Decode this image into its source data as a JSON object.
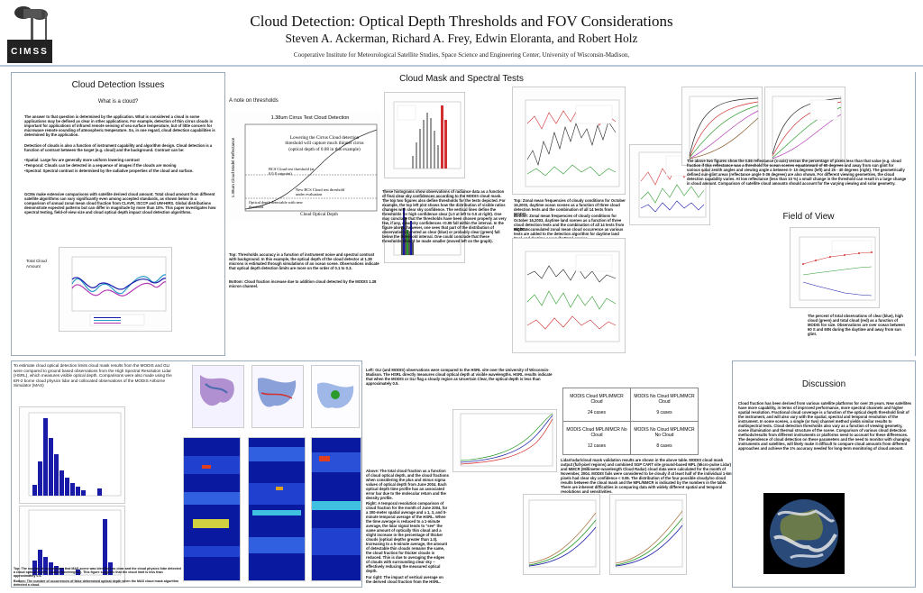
{
  "header": {
    "title": "Cloud Detection: Optical Depth Thresholds and FOV Considerations",
    "authors": "Steven A. Ackerman, Richard A. Frey, Edwin Eloranta, and Robert Holz",
    "affiliation": "Cooperative Institute for Meteorological Satellite Studies, Space Science and Engineering Center, University of Wisconsin-Madison,",
    "logo_text": "CIMSS"
  },
  "issues": {
    "title": "Cloud Detection Issues",
    "subtitle": "What is a cloud?",
    "p1": "The answer to that question is determined by the application. What is considered a cloud in some applications may be defined as clear in other applications. For example, detection of thin cirrus clouds is important for applications of infrared remote sensing of sea surface temperature, but of little concern for microwave remote sounding of atmospheric temperature. So, in one regard, cloud detection capabilities is determined by the application.",
    "p2": "Detection of clouds is also a function of instrument capability and algorithm design. Cloud detection is a function of contrast between the target (e.g. cloud) and the background. Contrast can be:",
    "list": [
      "•Spatial:      Large fov are generally more uniform lowering contrast",
      "•Temporal:   Clouds can be detected in a sequence of images if the clouds are moving",
      "•Spectral:     Spectral contrast is determined by the radiative properties of the cloud and surface."
    ],
    "p3": "GCMs make extensive comparisons with satellite derived cloud amount. Total cloud amount from different satellite algorithms can vary significantly even among accepted standards, as shown below in a comparison of annual zonal mean cloud fraction from CLAVR, ISCCP and UW-HIRS. Global distributions demonstrate expected patterns but can differ in magnitude by more than 10%. This paper investigates how spectral testing, field-of-view size and cloud optical depth impact cloud detection algorithms.",
    "side_label": "Total Cloud Amount"
  },
  "threshold": {
    "note": "A note on thresholds",
    "chart_title": "1.38um Cirrus Test Cloud Detection",
    "ylabel": "1.38um Cloud Model Reflectance",
    "xlabel": "Cloud Optical Depth",
    "annotation1": "Lowering the Cirrus Cloud detection threshold will capture much thinner cirrus (optical depth of 0.08 in this example)",
    "annotation2": "BCS Cloud test threshold (at 0.0.8 cutpoint)",
    "annotation3": "New BCS Cloud test threshold under evaluation",
    "annotation4": "Optical depth detectable with new threshold",
    "caption_top": "Top: Thresholds accuracy is a function of instrument noise and spectral contrast with background. In this example, the optical depth of the cloud detector at 1.38 microns is estimated through simulations of an ocean scene. Observations indicate that optical depth detection limits are more on the order of 0.1 to 0.3.",
    "caption_bottom": "Bottom: Cloud fraction increase due to addition cloud detected by the MODIS 1.38 micron channel."
  },
  "mask": {
    "title": "Cloud Mask and Spectral Tests",
    "hist_text": "These histograms show observations of radiance data as a function of final clear sky confidences according to the MODIS cloud mask. The top two figures also define thresholds for the tests depicted. For example, the top left plot shows how the distribution of visible ratios changes with clear sky confidence. The vertical lines define the thresholds for high confidence clear (1.0 at left to 0.0 at right). One may conclude that the thresholds have been chosen properly as very few, if any, clear sky confidences <0.95 fall within the interval. In the figure above, however, one sees that part of the distribution of observations denoted as clear (blue) or probably clear (green) fall below the threshold interval. One could conclude that these thresholds should be made smaller (moved left on the graph).",
    "zonal_text": "Top: Zonal mean frequencies of cloudy conditions for October 16,2003, daytime ocean scenes as a function of three cloud detection tests and the combination of all 14 tests from MODIS.",
    "zonal_text2": "Bottom: Zonal mean frequencies of cloudy conditions for October 16,2003, daytime land scenes as a function of three cloud detection tests and the combination of all 14 tests from MODIS.",
    "zonal_text3": "Right: Accumulated zonal mean cloud occurrence as various tests are added to the detection algorithm for daytime land (top) and daytime ocean (bottom) scenes.",
    "right_text": "The above two figures show the 0.86 reflectance (x-axis) versus the percentage of pixels less than that value (e.g. cloud fraction if this reflectance was a threshold for ocean scenes equatorward of 60 degrees and away from sun glint for various solar zenith angles and viewing angle a between 0- 10 degrees (left) and 25 - 40 degrees (right). The geometrically defined sun-glint areas (reflectance angle 0-36 degrees) are also shown. For different viewing geometries, the cloud detection capability varies. At low reflectance (less than 10 %) a small change in the threshold can result in a large change in cloud amount. Comparison of satellite cloud amounts should account for the varying viewing and solar geometry."
  },
  "fov": {
    "title": "Field of View",
    "caption": "The percent of total observations of clear (blue), high cloud (green) and total cloud (red) as a function of MODIS fov size. Observations are over ocean between 60 S and 60N during the daytime and away from sun glint."
  },
  "bottom_left": {
    "intro": "To estimate cloud optical detection limits cloud mask results from the MODIS and GLI were compared to ground based observations from the High Spectral Resolution Lidar (HSRL), which measures visible optical depth. Comparisons were also made using the ER-2 borne cloud physics lidar and collocated observations of the MODIS Airborne Simulator (MAS)",
    "caption_top": "Top: The number of occurrences that MAS scene was identified as clear and the cloud physics lidar detected a cloud optical depths (visible wavelengths). This figure suggests that the cloud limit is less than approximately 0.4.",
    "caption_bottom": "Bottom: The number of occurrences of false determined optical depth when the MAS cloud mask algorithm detected a cloud."
  },
  "hsrl": {
    "text": "Left: GLI (and MODIS) observations were compared to the HSRL site over the University of Wisconsin-Madison. The HSRL directly measures cloud optical depth at visible wavelengths. HSRL results indicate that when the MODIS or GLI flag a cloudy region as Uncertain Clear, the optical depth is less than approximately 0.5.",
    "above": "Above: The total cloud fraction as a function of cloud optical depth, and the cloud fractions when considering the plus and minus sigma values of optical depth from June 2004. Each optical depth time profile has an associated error bar due to the molecular return and the density profile.",
    "right": "Right: A temporal resolution comparison of cloud fraction for the month of June 2004, for a 300-meter spatial average and a 1, 3, and 5-minute temporal average of the HSRL. When the time average is reduced to a 1-minute average, the lidar signal tends to \"see\" the same amount of optically thin cloud and a slight increase in the percentage of thicker clouds (optical depths greater than 1.0). Increasing to a 5-minute average, the amount of detectable thin clouds remains the same, the cloud fraction for thicker clouds is reduced. This is due to averaging the edges of clouds with surrounding clear sky – effectively reducing the measured optical depth.",
    "far_right": "Far right: The impact of vertical average on the derived cloud fraction from the HSRL."
  },
  "matrix": {
    "cells": [
      [
        "MODIS Cloud\nMPL/MMCR Cloud",
        "24 cases",
        "MODIS No Cloud\nMPL/MMCR Cloud",
        "9 cases"
      ],
      [
        "MODIS Cloud\nMPL/MMCR No Cloud",
        "12 cases",
        "MODIS No Cloud\nMPL/MMCR No Cloud",
        "8 cases"
      ]
    ],
    "caption": "Lidar/radar/cloud mask validation results are shown in the above table. MODIS cloud mask output (full-pixel regions) and combined SGP CART site ground-based MPL (Micro-pulse Lidar) and MMCR (Millimeter-wavelength Cloud Radar) cloud data were calculated for the month of November, 2004. MODIS fails were considered to be cloudy if at least half of the individual 1-km pixels had clear sky confidence < 0.95. The distribution of the four possible cloudy/no cloud results between the cloud mask and the MPL/MMCR is indicated by the numbers in the table. There are inherent difficulties in comparing data with widely different spatial and temporal resolutions and sensitivities."
  },
  "discussion": {
    "title": "Discussion",
    "text": "Cloud fraction has been derived from various satellite platforms for over 25 years. New satellites have more capability, in terms of improved performance, more spectral channels and higher spatial resolution. Fractional cloud coverage is a function of the optical depth threshold limit of the instrument, and will also vary with the spatial, spectral and temporal resolution of the instrument. In some scenes, a single (or two) channel method yields similar results to multispectral tests. Cloud detection thresholds also vary as a function of viewing geometry, scene illumination and thermal structure of the scene. Comparison of various cloud detection methods/results from different instruments or platforms need to account for these differences. The dependence of cloud detection on these parameters and the need to monitor with changing instruments and satellites, will likely make it difficult to compare cloud amounts from different approaches and achieve the 1% accuracy needed for long-term monitoring of cloud amount."
  },
  "colors": {
    "panel_border": "#99aabb",
    "blue": "#1a1aa8",
    "red": "#d23030",
    "green": "#2a9a2a"
  }
}
